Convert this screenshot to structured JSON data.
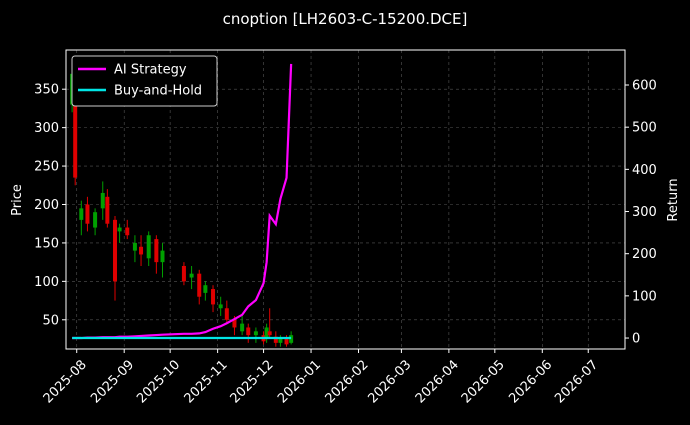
{
  "chart_data": {
    "type": "candlestick",
    "title": "cnoption [LH2603-C-15200.DCE]",
    "ylabel": "Price",
    "y2label": "Return",
    "x": [
      "2025-07-29",
      "2025-07-31",
      "2025-08-04",
      "2025-08-08",
      "2025-08-13",
      "2025-08-18",
      "2025-08-21",
      "2025-08-26",
      "2025-08-29",
      "2025-09-03",
      "2025-09-08",
      "2025-09-12",
      "2025-09-17",
      "2025-09-22",
      "2025-09-26",
      "2025-10-10",
      "2025-10-15",
      "2025-10-20",
      "2025-10-24",
      "2025-10-29",
      "2025-11-03",
      "2025-11-07",
      "2025-11-12",
      "2025-11-17",
      "2025-11-21",
      "2025-11-26",
      "2025-12-01",
      "2025-12-03",
      "2025-12-05",
      "2025-12-09",
      "2025-12-12",
      "2025-12-16",
      "2025-12-19"
    ],
    "open": [
      330,
      360,
      180,
      200,
      170,
      195,
      210,
      180,
      165,
      170,
      140,
      145,
      130,
      155,
      125,
      120,
      105,
      110,
      85,
      90,
      65,
      65,
      50,
      35,
      40,
      30,
      30,
      25,
      35,
      28,
      20,
      25,
      20
    ],
    "high": [
      385,
      365,
      205,
      210,
      195,
      230,
      220,
      185,
      175,
      180,
      160,
      160,
      165,
      160,
      150,
      125,
      120,
      115,
      100,
      95,
      80,
      75,
      55,
      55,
      45,
      40,
      35,
      45,
      65,
      35,
      30,
      30,
      35
    ],
    "low": [
      320,
      225,
      160,
      165,
      160,
      180,
      170,
      75,
      150,
      155,
      125,
      120,
      120,
      110,
      105,
      95,
      90,
      70,
      75,
      60,
      55,
      45,
      30,
      30,
      20,
      20,
      18,
      20,
      25,
      15,
      15,
      15,
      18
    ],
    "close": [
      370,
      235,
      195,
      175,
      190,
      215,
      175,
      100,
      170,
      160,
      150,
      135,
      160,
      125,
      140,
      100,
      110,
      80,
      95,
      70,
      70,
      50,
      40,
      45,
      30,
      35,
      22,
      40,
      30,
      20,
      25,
      18,
      30
    ],
    "up_color": "#00a000",
    "down_color": "#e00000",
    "series": [
      {
        "name": "AI Strategy",
        "color": "#ff00ff",
        "axis": "y2",
        "values": [
          0,
          0,
          0,
          1,
          1,
          2,
          2,
          2,
          3,
          3,
          4,
          5,
          6,
          7,
          8,
          10,
          10,
          11,
          14,
          22,
          28,
          35,
          45,
          55,
          75,
          90,
          130,
          180,
          290,
          270,
          330,
          380,
          650
        ]
      },
      {
        "name": "Buy-and-Hold",
        "color": "#00e5e5",
        "axis": "y2",
        "values": [
          0,
          0,
          0,
          0,
          0,
          0,
          0,
          0,
          0,
          0,
          0,
          0,
          0,
          0,
          0,
          0,
          0,
          0,
          0,
          0,
          0,
          0,
          0,
          0,
          0,
          0,
          0,
          0,
          0,
          0,
          0,
          0,
          0
        ]
      }
    ],
    "xlim": [
      "2025-07-25",
      "2026-07-25"
    ],
    "xticks": [
      {
        "value": "2025-08-01",
        "label": "2025-08"
      },
      {
        "value": "2025-09-01",
        "label": "2025-09"
      },
      {
        "value": "2025-10-01",
        "label": "2025-10"
      },
      {
        "value": "2025-11-01",
        "label": "2025-11"
      },
      {
        "value": "2025-12-01",
        "label": "2025-12"
      },
      {
        "value": "2026-01-01",
        "label": "2026-01"
      },
      {
        "value": "2026-02-01",
        "label": "2026-02"
      },
      {
        "value": "2026-03-01",
        "label": "2026-03"
      },
      {
        "value": "2026-04-01",
        "label": "2026-04"
      },
      {
        "value": "2026-05-01",
        "label": "2026-05"
      },
      {
        "value": "2026-06-01",
        "label": "2026-06"
      },
      {
        "value": "2026-07-01",
        "label": "2026-07"
      }
    ],
    "ylim": [
      12,
      401
    ],
    "yticks": [
      50,
      100,
      150,
      200,
      250,
      300,
      350
    ],
    "y2lim": [
      -26,
      683
    ],
    "y2ticks": [
      0,
      100,
      200,
      300,
      400,
      500,
      600
    ],
    "grid": true,
    "legend": "upper left"
  }
}
